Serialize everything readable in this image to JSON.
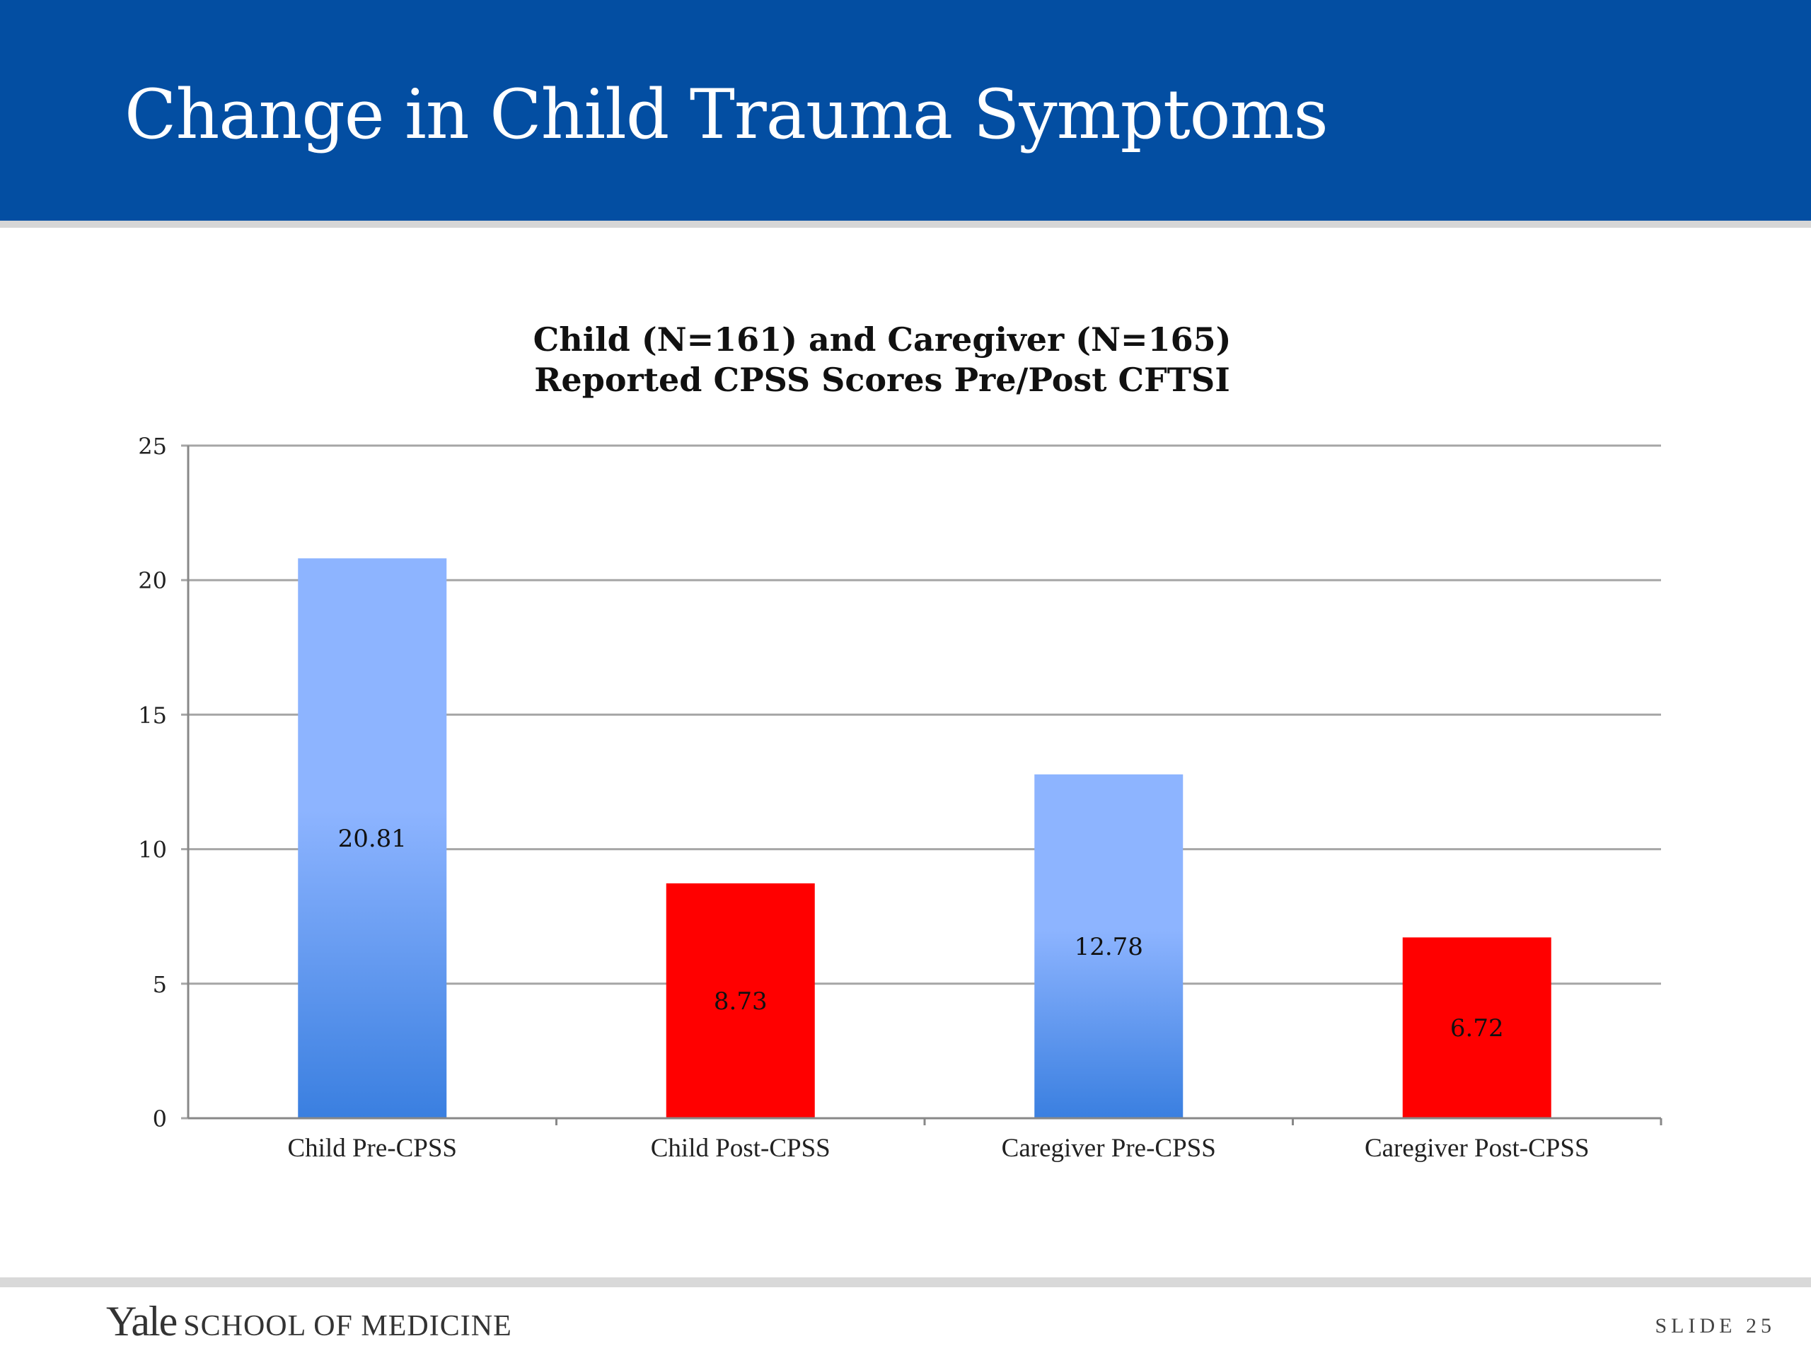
{
  "slide": {
    "title": "Change in Child Trauma Symptoms",
    "footer_logo_wordmark": "Yale",
    "footer_logo_text": "SCHOOL OF MEDICINE",
    "slide_number_label": "SLIDE 25"
  },
  "colors": {
    "header_background": "#034ea2",
    "header_text": "#ffffff",
    "pre_bar_top": "#8db4ff",
    "pre_bar_bottom": "#3a7fe0",
    "post_bar": "#ff0000",
    "gridline": "#a6a6a6"
  },
  "chart_data": {
    "type": "bar",
    "title_lines": [
      "Child (N=161) and Caregiver (N=165)",
      "Reported CPSS Scores Pre/Post CFTSI"
    ],
    "categories": [
      "Child Pre-CPSS",
      "Child Post-CPSS",
      "Caregiver Pre-CPSS",
      "Caregiver Post-CPSS"
    ],
    "values": [
      20.81,
      8.73,
      12.78,
      6.72
    ],
    "data_labels": [
      "20.81",
      "8.73",
      "12.78",
      "6.72"
    ],
    "bar_styles": [
      "pre",
      "post",
      "pre",
      "post"
    ],
    "ylim": [
      0,
      25
    ],
    "yticks": [
      0,
      5,
      10,
      15,
      20,
      25
    ],
    "ytick_labels": [
      "0",
      "5",
      "10",
      "15",
      "20",
      "25"
    ],
    "grid": true,
    "legend": "none"
  }
}
